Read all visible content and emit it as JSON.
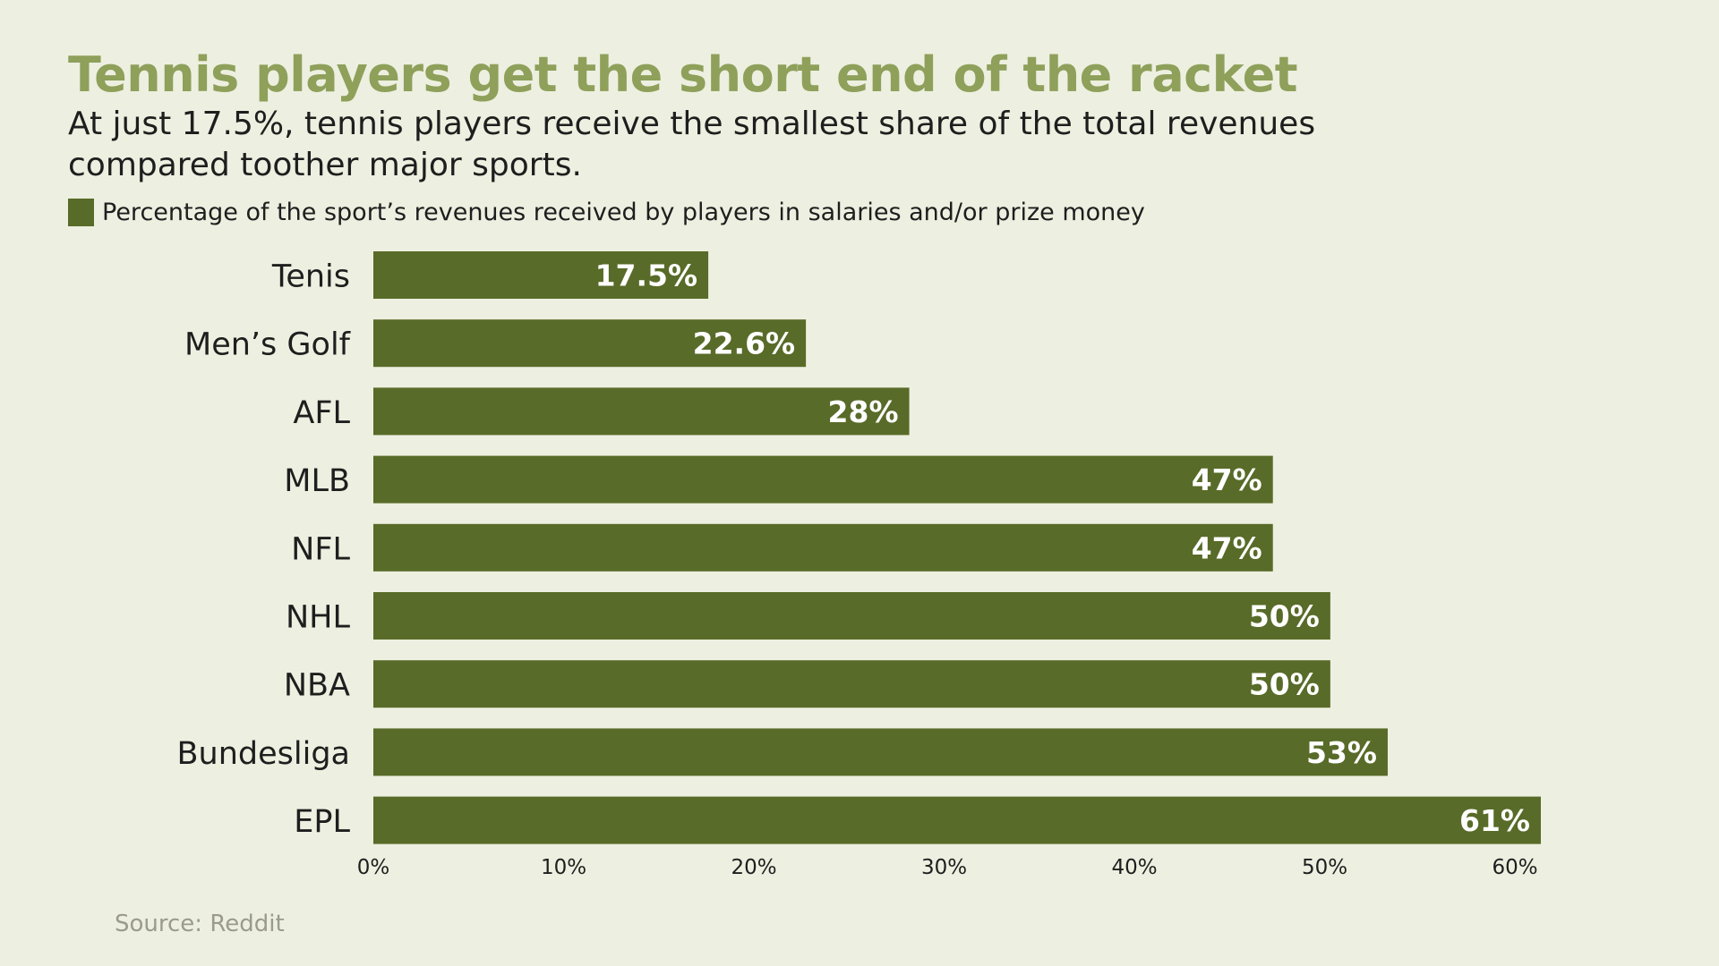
{
  "title": "Tennis players get the short end of the racket",
  "subtitle": "At just 17.5%, tennis players receive the smallest share of the total revenues compared toother major sports.",
  "source": "Source: Reddit",
  "colors": {
    "background": "#edefe0",
    "title": "#8ea05a",
    "bar": "#586b28",
    "bar_label": "#ffffff",
    "text": "#1e1e1e",
    "source": "#9a9a8e"
  },
  "chart_data": {
    "type": "bar",
    "orientation": "horizontal",
    "categories": [
      "Tenis",
      "Men’s Golf",
      "AFL",
      "MLB",
      "NFL",
      "NHL",
      "NBA",
      "Bundesliga",
      "EPL"
    ],
    "series": [
      {
        "name": "Percentage of the sport’s revenues received by players in salaries and/or prize money",
        "values": [
          17.5,
          22.6,
          28,
          47,
          47,
          50,
          50,
          53,
          61
        ],
        "labels": [
          "17.5%",
          "22.6%",
          "28%",
          "47%",
          "47%",
          "50%",
          "50%",
          "53%",
          "61%"
        ]
      }
    ],
    "xlim": [
      0,
      61
    ],
    "xticks": [
      0,
      10,
      20,
      30,
      40,
      50,
      60
    ],
    "xtick_labels": [
      "0%",
      "10%",
      "20%",
      "30%",
      "40%",
      "50%",
      "60%"
    ],
    "grid": false,
    "legend_position": "top-left"
  }
}
